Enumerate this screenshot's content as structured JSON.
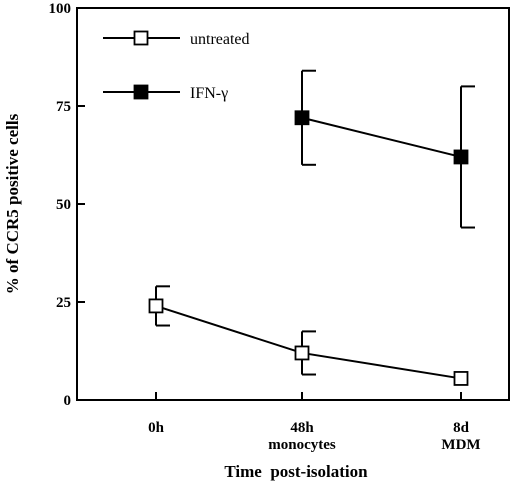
{
  "chart_data": {
    "type": "line",
    "xlabel": "Time  post-isolation",
    "ylabel": "% of CCR5 positive cells",
    "categories": [
      {
        "line1": "0h",
        "line2": ""
      },
      {
        "line1": "48h",
        "line2": "monocytes"
      },
      {
        "line1": "8d",
        "line2": "MDM"
      }
    ],
    "ylim": [
      0,
      100
    ],
    "yticks": [
      "0",
      "25",
      "50",
      "75",
      "100"
    ],
    "grid": false,
    "legend_position": "top-left",
    "series": [
      {
        "name": "untreated",
        "marker": "open-square",
        "color": "#000000",
        "values": [
          24,
          12,
          5.5
        ],
        "errors": [
          [
            19,
            29
          ],
          [
            6.5,
            17.5
          ],
          [
            null,
            null
          ]
        ]
      },
      {
        "name": "IFN-γ",
        "marker": "filled-square",
        "color": "#000000",
        "values": [
          null,
          72,
          62
        ],
        "errors": [
          [
            null,
            null
          ],
          [
            60,
            84
          ],
          [
            44,
            80
          ]
        ]
      }
    ]
  }
}
